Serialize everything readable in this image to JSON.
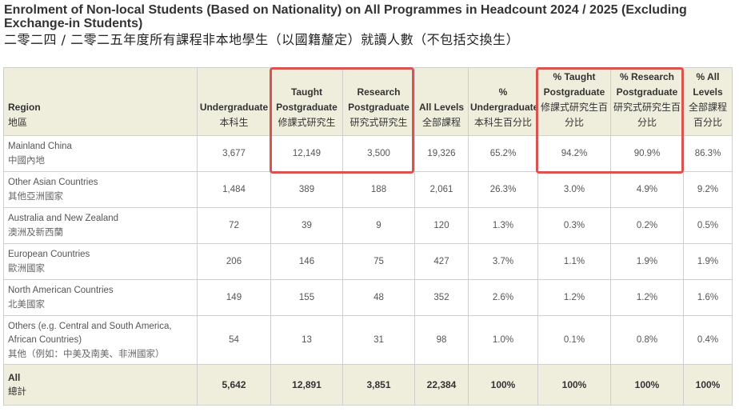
{
  "title": {
    "en": "Enrolment of Non-local Students (Based on Nationality) on All Programmes in Headcount 2024 / 2025 (Excluding Exchange-in Students)",
    "zh": "二零二四 / 二零二五年度所有課程非本地學生（以國籍釐定）就讀人數（不包括交換生）"
  },
  "headers": [
    {
      "en": "Region",
      "zh": "地區"
    },
    {
      "en": "Undergraduate",
      "zh": "本科生"
    },
    {
      "en": "Taught Postgraduate",
      "zh": "修課式研究生"
    },
    {
      "en": "Research Postgraduate",
      "zh": "研究式研究生"
    },
    {
      "en": "All Levels",
      "zh": "全部課程"
    },
    {
      "en": "% Undergraduate",
      "zh": "本科生百分比"
    },
    {
      "en": "% Taught Postgraduate",
      "zh": "修課式研究生百分比"
    },
    {
      "en": "% Research Postgraduate",
      "zh": "研究式研究生百分比"
    },
    {
      "en": "% All Levels",
      "zh": "全部課程百分比"
    }
  ],
  "rows": [
    {
      "region_en": "Mainland China",
      "region_zh": "中國內地",
      "ug": "3,677",
      "tpg": "12,149",
      "rpg": "3,500",
      "all": "19,326",
      "p_ug": "65.2%",
      "p_tpg": "94.2%",
      "p_rpg": "90.9%",
      "p_all": "86.3%"
    },
    {
      "region_en": "Other Asian Countries",
      "region_zh": "其他亞洲國家",
      "ug": "1,484",
      "tpg": "389",
      "rpg": "188",
      "all": "2,061",
      "p_ug": "26.3%",
      "p_tpg": "3.0%",
      "p_rpg": "4.9%",
      "p_all": "9.2%"
    },
    {
      "region_en": "Australia and New Zealand",
      "region_zh": "澳洲及新西蘭",
      "ug": "72",
      "tpg": "39",
      "rpg": "9",
      "all": "120",
      "p_ug": "1.3%",
      "p_tpg": "0.3%",
      "p_rpg": "0.2%",
      "p_all": "0.5%"
    },
    {
      "region_en": "European Countries",
      "region_zh": "歐洲國家",
      "ug": "206",
      "tpg": "146",
      "rpg": "75",
      "all": "427",
      "p_ug": "3.7%",
      "p_tpg": "1.1%",
      "p_rpg": "1.9%",
      "p_all": "1.9%"
    },
    {
      "region_en": "North American Countries",
      "region_zh": "北美國家",
      "ug": "149",
      "tpg": "155",
      "rpg": "48",
      "all": "352",
      "p_ug": "2.6%",
      "p_tpg": "1.2%",
      "p_rpg": "1.2%",
      "p_all": "1.6%"
    },
    {
      "region_en": "Others (e.g. Central and South America, African Countries)",
      "region_zh": "其他（例如：中美及南美、非洲國家）",
      "ug": "54",
      "tpg": "13",
      "rpg": "31",
      "all": "98",
      "p_ug": "1.0%",
      "p_tpg": "0.1%",
      "p_rpg": "0.8%",
      "p_all": "0.4%"
    }
  ],
  "total": {
    "region_en": "All",
    "region_zh": "總計",
    "ug": "5,642",
    "tpg": "12,891",
    "rpg": "3,851",
    "all": "22,384",
    "p_ug": "100%",
    "p_tpg": "100%",
    "p_rpg": "100%",
    "p_all": "100%"
  },
  "highlight_color": "#d9534f",
  "header_bg": "#efeedd"
}
